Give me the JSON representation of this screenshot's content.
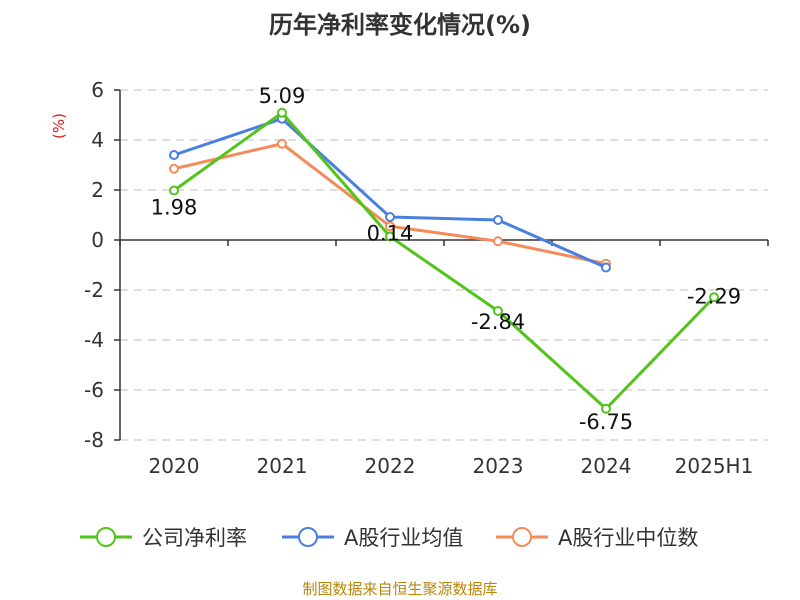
{
  "chart_data": {
    "type": "line",
    "title": "历年净利率变化情况(%)",
    "ylabel": "(%)",
    "categories": [
      "2020",
      "2021",
      "2022",
      "2023",
      "2024",
      "2025H1"
    ],
    "ylim": [
      -8,
      6
    ],
    "yticks": [
      6,
      4,
      2,
      0,
      -2,
      -4,
      -6,
      -8
    ],
    "grid": true,
    "legend_position": "bottom",
    "series": [
      {
        "name": "公司净利率",
        "color": "#52c41a",
        "values": [
          1.98,
          5.09,
          0.14,
          -2.84,
          -6.75,
          -2.29
        ],
        "labels": [
          "1.98",
          "5.09",
          "0.14",
          "-2.84",
          "-6.75",
          "-2.29"
        ]
      },
      {
        "name": "A股行业均值",
        "color": "#4a7fe0",
        "values": [
          3.4,
          4.85,
          0.92,
          0.8,
          -1.1,
          null
        ]
      },
      {
        "name": "A股行业中位数",
        "color": "#f28c5a",
        "values": [
          2.85,
          3.85,
          0.55,
          -0.05,
          -0.95,
          null
        ]
      }
    ],
    "source": "制图数据来自恒生聚源数据库"
  }
}
